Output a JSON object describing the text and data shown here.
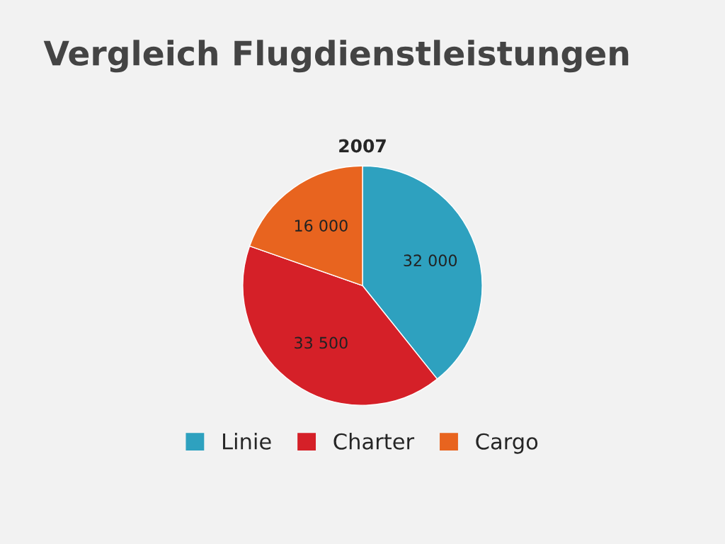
{
  "chart_data": {
    "type": "pie",
    "title": "Vergleich Flugdienstleistungen",
    "subtitle": "2007",
    "categories": [
      "Linie",
      "Charter",
      "Cargo"
    ],
    "values": [
      32000,
      33500,
      16000
    ],
    "colors": [
      "#2ea1bf",
      "#d52028",
      "#e8641f"
    ],
    "value_labels": [
      "32 000",
      "33 500",
      "16 000"
    ],
    "legend": "bottom"
  }
}
